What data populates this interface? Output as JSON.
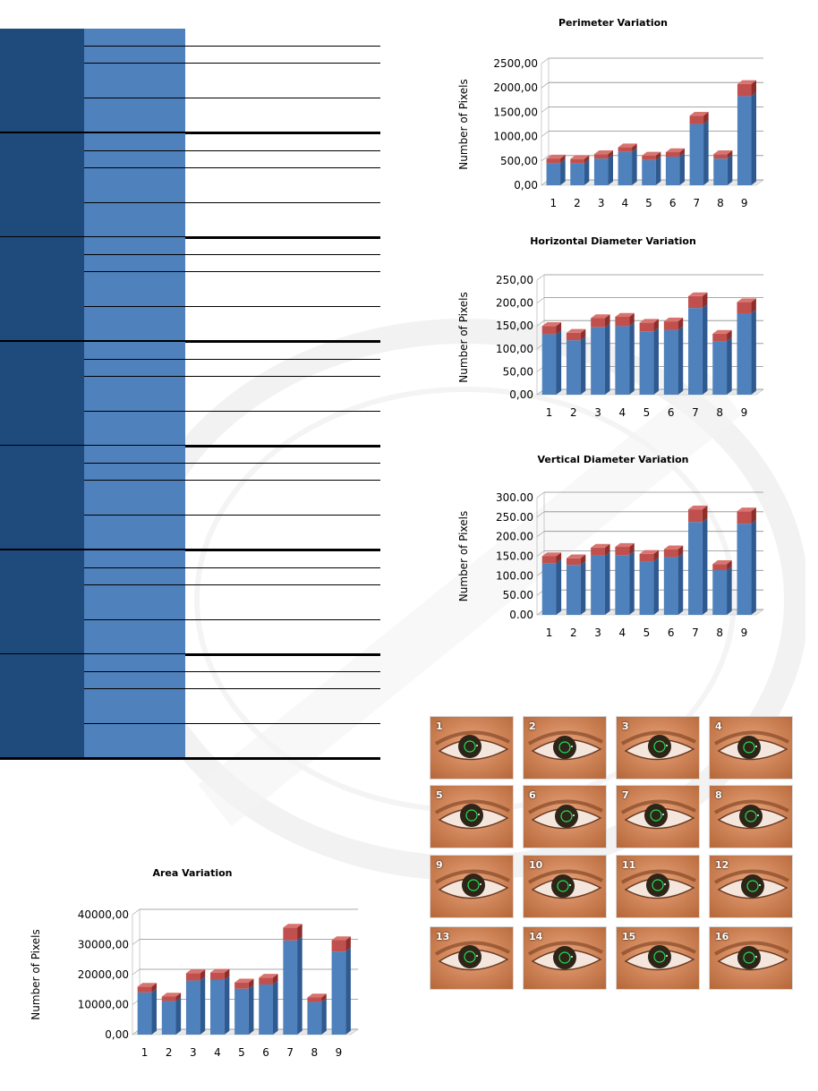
{
  "charts": [
    {
      "id": "perimeter",
      "title": "Perimeter Variation",
      "ylabel": "Number of Pixels",
      "chart_data": {
        "type": "bar",
        "title": "Perimeter Variation",
        "ylabel": "Number of Pixels",
        "categories": [
          "1",
          "2",
          "3",
          "4",
          "5",
          "6",
          "7",
          "8",
          "9"
        ],
        "values": [
          550,
          540,
          640,
          780,
          610,
          680,
          1430,
          640,
          2080
        ],
        "ylim": [
          0,
          2500
        ],
        "yticks": [
          "0,00",
          "500,00",
          "1000,00",
          "1500,00",
          "2000,00",
          "2500,00"
        ],
        "grid": true,
        "colors": {
          "bar": "#4f81bd",
          "cap": "#c0504d"
        }
      }
    },
    {
      "id": "horizontal",
      "title": "Horizontal Diameter Variation",
      "ylabel": "Number of Pixels",
      "chart_data": {
        "type": "bar",
        "title": "Horizontal Diameter Variation",
        "ylabel": "Number of Pixels",
        "categories": [
          "1",
          "2",
          "3",
          "4",
          "5",
          "6",
          "7",
          "8",
          "9"
        ],
        "values": [
          150,
          135,
          167,
          170,
          157,
          160,
          215,
          133,
          202
        ],
        "ylim": [
          0,
          250
        ],
        "yticks": [
          "0,00",
          "50,00",
          "100,00",
          "150,00",
          "200,00",
          "250,00"
        ],
        "grid": true,
        "colors": {
          "bar": "#4f81bd",
          "cap": "#c0504d"
        }
      }
    },
    {
      "id": "vertical",
      "title": "Vertical Diameter Variation",
      "ylabel": "Number of Pixels",
      "chart_data": {
        "type": "bar",
        "title": "Vertical Diameter Variation",
        "ylabel": "Number of Pixels",
        "categories": [
          "1",
          "2",
          "3",
          "4",
          "5",
          "6",
          "7",
          "8",
          "9"
        ],
        "values": [
          150,
          145,
          172,
          174,
          156,
          168,
          270,
          130,
          265
        ],
        "ylim": [
          0,
          300
        ],
        "yticks": [
          "0.00",
          "50.00",
          "100.00",
          "150.00",
          "200.00",
          "250.00",
          "300.00"
        ],
        "grid": true,
        "colors": {
          "bar": "#4f81bd",
          "cap": "#c0504d"
        }
      }
    },
    {
      "id": "area",
      "title": "Area Variation",
      "ylabel": "Number of Pixels",
      "chart_data": {
        "type": "bar",
        "title": "Area Variation",
        "ylabel": "Number of Pixels",
        "categories": [
          "1",
          "2",
          "3",
          "4",
          "5",
          "6",
          "7",
          "8",
          "9"
        ],
        "values": [
          16000,
          12700,
          20500,
          20700,
          17400,
          19000,
          35700,
          12400,
          31500
        ],
        "ylim": [
          0,
          40000
        ],
        "yticks": [
          "0,00",
          "10000,00",
          "20000,00",
          "30000,00",
          "40000,00"
        ],
        "grid": true,
        "colors": {
          "bar": "#4f81bd",
          "cap": "#c0504d"
        }
      }
    }
  ],
  "thumbnails": [
    "1",
    "2",
    "3",
    "4",
    "5",
    "6",
    "7",
    "8",
    "9",
    "10",
    "11",
    "12",
    "13",
    "14",
    "15",
    "16"
  ]
}
